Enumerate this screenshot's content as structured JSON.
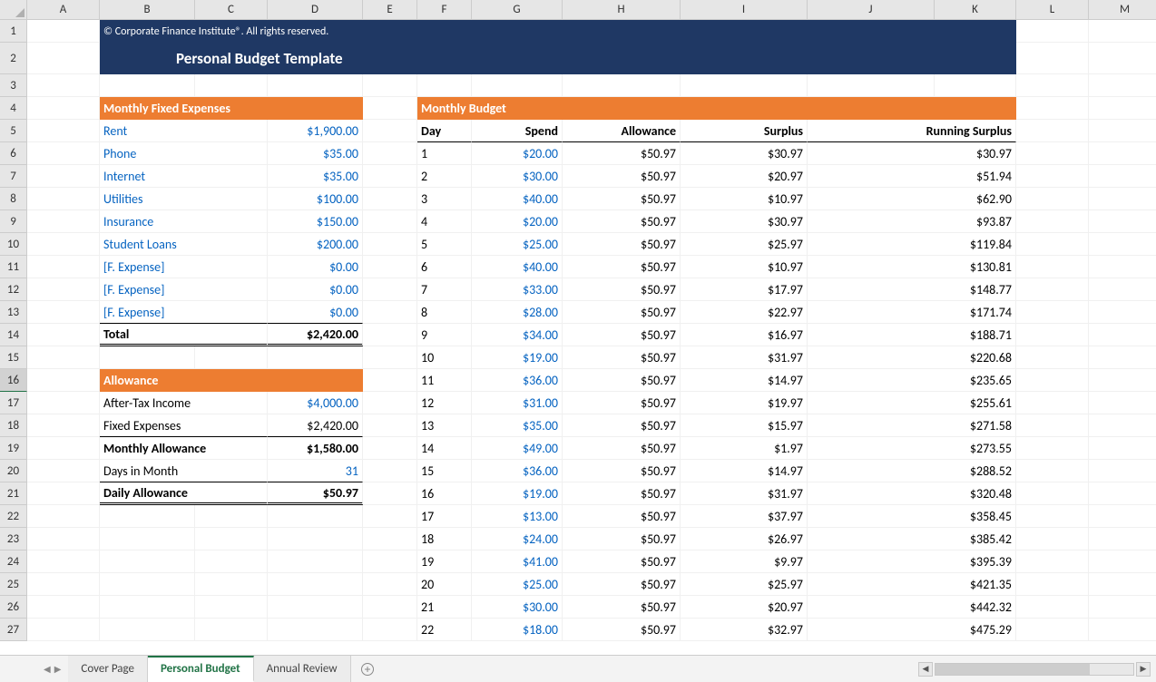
{
  "columns": [
    "A",
    "B",
    "C",
    "D",
    "E",
    "F",
    "G",
    "H",
    "I",
    "J",
    "K",
    "L",
    "M"
  ],
  "rowCount": 27,
  "banner": {
    "copyright": "© Corporate Finance Institute®. All rights reserved.",
    "title": "Personal Budget Template"
  },
  "colors": {
    "navy": "#1f3864",
    "orange": "#ed7d31",
    "link": "#0563c1",
    "sheetTabActive": "#217346"
  },
  "fixedExpenses": {
    "header": "Monthly Fixed Expenses",
    "items": [
      {
        "label": "Rent",
        "value": "$1,900.00"
      },
      {
        "label": "Phone",
        "value": "$35.00"
      },
      {
        "label": "Internet",
        "value": "$35.00"
      },
      {
        "label": "Utilities",
        "value": "$100.00"
      },
      {
        "label": "Insurance",
        "value": "$150.00"
      },
      {
        "label": "Student Loans",
        "value": "$200.00"
      },
      {
        "label": "[F. Expense]",
        "value": "$0.00"
      },
      {
        "label": "[F. Expense]",
        "value": "$0.00"
      },
      {
        "label": "[F. Expense]",
        "value": "$0.00"
      }
    ],
    "totalLabel": "Total",
    "totalValue": "$2,420.00"
  },
  "allowance": {
    "header": "Allowance",
    "rows": [
      {
        "label": "After-Tax Income",
        "value": "$4,000.00",
        "valueBlue": true
      },
      {
        "label": "Fixed Expenses",
        "value": "$2,420.00",
        "valueBlue": false
      },
      {
        "label": "Monthly Allowance",
        "value": "$1,580.00",
        "bold": true
      },
      {
        "label": "Days in Month",
        "value": "31",
        "valueBlue": true
      },
      {
        "label": "Daily Allowance",
        "value": "$50.97",
        "bold": true,
        "dbl": true
      }
    ]
  },
  "budget": {
    "header": "Monthly Budget",
    "colHeaders": [
      "Day",
      "Spend",
      "Allowance",
      "Surplus",
      "Running Surplus"
    ],
    "rows": [
      {
        "day": "1",
        "spend": "$20.00",
        "allow": "$50.97",
        "surplus": "$30.97",
        "run": "$30.97"
      },
      {
        "day": "2",
        "spend": "$30.00",
        "allow": "$50.97",
        "surplus": "$20.97",
        "run": "$51.94"
      },
      {
        "day": "3",
        "spend": "$40.00",
        "allow": "$50.97",
        "surplus": "$10.97",
        "run": "$62.90"
      },
      {
        "day": "4",
        "spend": "$20.00",
        "allow": "$50.97",
        "surplus": "$30.97",
        "run": "$93.87"
      },
      {
        "day": "5",
        "spend": "$25.00",
        "allow": "$50.97",
        "surplus": "$25.97",
        "run": "$119.84"
      },
      {
        "day": "6",
        "spend": "$40.00",
        "allow": "$50.97",
        "surplus": "$10.97",
        "run": "$130.81"
      },
      {
        "day": "7",
        "spend": "$33.00",
        "allow": "$50.97",
        "surplus": "$17.97",
        "run": "$148.77"
      },
      {
        "day": "8",
        "spend": "$28.00",
        "allow": "$50.97",
        "surplus": "$22.97",
        "run": "$171.74"
      },
      {
        "day": "9",
        "spend": "$34.00",
        "allow": "$50.97",
        "surplus": "$16.97",
        "run": "$188.71"
      },
      {
        "day": "10",
        "spend": "$19.00",
        "allow": "$50.97",
        "surplus": "$31.97",
        "run": "$220.68"
      },
      {
        "day": "11",
        "spend": "$36.00",
        "allow": "$50.97",
        "surplus": "$14.97",
        "run": "$235.65"
      },
      {
        "day": "12",
        "spend": "$31.00",
        "allow": "$50.97",
        "surplus": "$19.97",
        "run": "$255.61"
      },
      {
        "day": "13",
        "spend": "$35.00",
        "allow": "$50.97",
        "surplus": "$15.97",
        "run": "$271.58"
      },
      {
        "day": "14",
        "spend": "$49.00",
        "allow": "$50.97",
        "surplus": "$1.97",
        "run": "$273.55"
      },
      {
        "day": "15",
        "spend": "$36.00",
        "allow": "$50.97",
        "surplus": "$14.97",
        "run": "$288.52"
      },
      {
        "day": "16",
        "spend": "$19.00",
        "allow": "$50.97",
        "surplus": "$31.97",
        "run": "$320.48"
      },
      {
        "day": "17",
        "spend": "$13.00",
        "allow": "$50.97",
        "surplus": "$37.97",
        "run": "$358.45"
      },
      {
        "day": "18",
        "spend": "$24.00",
        "allow": "$50.97",
        "surplus": "$26.97",
        "run": "$385.42"
      },
      {
        "day": "19",
        "spend": "$41.00",
        "allow": "$50.97",
        "surplus": "$9.97",
        "run": "$395.39"
      },
      {
        "day": "20",
        "spend": "$25.00",
        "allow": "$50.97",
        "surplus": "$25.97",
        "run": "$421.35"
      },
      {
        "day": "21",
        "spend": "$30.00",
        "allow": "$50.97",
        "surplus": "$20.97",
        "run": "$442.32"
      },
      {
        "day": "22",
        "spend": "$18.00",
        "allow": "$50.97",
        "surplus": "$32.97",
        "run": "$475.29"
      }
    ]
  },
  "tabs": [
    {
      "label": "Cover Page",
      "active": false
    },
    {
      "label": "Personal Budget",
      "active": true
    },
    {
      "label": "Annual Review",
      "active": false
    }
  ],
  "selectedRow": 16
}
